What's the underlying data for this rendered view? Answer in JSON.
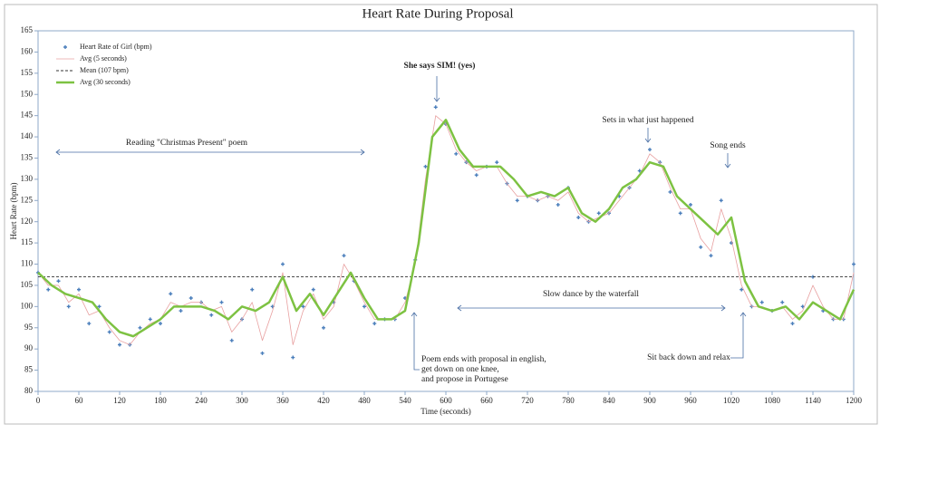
{
  "chart_data": {
    "type": "line",
    "title": "Heart Rate During Proposal",
    "x_label": "Time (seconds)",
    "y_label": "Heart Rate (bpm)",
    "xlim": [
      0,
      1200
    ],
    "xticks": [
      0,
      60,
      120,
      180,
      240,
      300,
      360,
      420,
      480,
      540,
      600,
      660,
      720,
      780,
      840,
      900,
      960,
      1020,
      1080,
      1140,
      1200
    ],
    "ylim": [
      80,
      165
    ],
    "yticks": [
      80,
      85,
      90,
      95,
      100,
      105,
      110,
      115,
      120,
      125,
      130,
      135,
      140,
      145,
      150,
      155,
      160,
      165
    ],
    "legend": "top-left",
    "series": [
      {
        "name": "Heart Rate of Girl (bpm)",
        "style": "markers",
        "color": "#4a7ebb",
        "x": [
          0,
          15,
          30,
          45,
          60,
          75,
          90,
          105,
          120,
          135,
          150,
          165,
          180,
          195,
          210,
          225,
          240,
          255,
          270,
          285,
          300,
          315,
          330,
          345,
          360,
          375,
          390,
          405,
          420,
          435,
          450,
          465,
          480,
          495,
          510,
          525,
          540,
          555,
          570,
          585,
          600,
          615,
          630,
          645,
          660,
          675,
          690,
          705,
          720,
          735,
          750,
          765,
          780,
          795,
          810,
          825,
          840,
          855,
          870,
          885,
          900,
          915,
          930,
          945,
          960,
          975,
          990,
          1005,
          1020,
          1035,
          1050,
          1065,
          1080,
          1095,
          1110,
          1125,
          1140,
          1155,
          1170,
          1185,
          1200
        ],
        "values": [
          108,
          104,
          106,
          100,
          104,
          96,
          100,
          94,
          91,
          91,
          95,
          97,
          96,
          103,
          99,
          102,
          101,
          98,
          101,
          92,
          97,
          104,
          89,
          100,
          110,
          88,
          100,
          104,
          95,
          101,
          112,
          106,
          100,
          96,
          97,
          97,
          102,
          111,
          133,
          147,
          143,
          136,
          134,
          131,
          133,
          134,
          129,
          125,
          126,
          125,
          126,
          124,
          128,
          121,
          120,
          122,
          122,
          126,
          128,
          132,
          137,
          134,
          127,
          122,
          124,
          114,
          112,
          125,
          115,
          104,
          100,
          101,
          99,
          101,
          96,
          100,
          107,
          99,
          97,
          97,
          110
        ]
      },
      {
        "name": "Avg (5 seconds)",
        "style": "line",
        "color": "#e8a0a0",
        "x": [
          0,
          15,
          30,
          45,
          60,
          75,
          90,
          105,
          120,
          135,
          150,
          165,
          180,
          195,
          210,
          225,
          240,
          255,
          270,
          285,
          300,
          315,
          330,
          345,
          360,
          375,
          390,
          405,
          420,
          435,
          450,
          465,
          480,
          495,
          510,
          525,
          540,
          555,
          570,
          585,
          600,
          615,
          630,
          645,
          660,
          675,
          690,
          705,
          720,
          735,
          750,
          765,
          780,
          795,
          810,
          825,
          840,
          855,
          870,
          885,
          900,
          915,
          930,
          945,
          960,
          975,
          990,
          1005,
          1020,
          1035,
          1050,
          1065,
          1080,
          1095,
          1110,
          1125,
          1140,
          1155,
          1170,
          1185,
          1200
        ],
        "values": [
          108,
          105,
          105,
          101,
          103,
          98,
          99,
          95,
          92,
          91,
          94,
          96,
          97,
          101,
          100,
          101,
          101,
          99,
          100,
          94,
          97,
          101,
          92,
          99,
          108,
          91,
          99,
          103,
          97,
          100,
          110,
          106,
          101,
          97,
          97,
          97,
          101,
          110,
          130,
          145,
          143,
          137,
          134,
          132,
          133,
          133,
          129,
          126,
          126,
          125,
          126,
          125,
          127,
          122,
          120,
          121,
          122,
          125,
          128,
          131,
          136,
          134,
          128,
          123,
          123,
          116,
          113,
          123,
          116,
          105,
          100,
          100,
          99,
          100,
          97,
          99,
          105,
          100,
          97,
          97,
          108
        ]
      },
      {
        "name": "Mean (107 bpm)",
        "style": "dashed",
        "color": "#333333",
        "value": 107
      },
      {
        "name": "Avg (30 seconds)",
        "style": "thick",
        "color": "#7dc242",
        "x": [
          0,
          20,
          40,
          60,
          80,
          100,
          120,
          140,
          160,
          180,
          200,
          220,
          240,
          260,
          280,
          300,
          320,
          340,
          360,
          380,
          400,
          420,
          440,
          460,
          480,
          500,
          520,
          540,
          560,
          580,
          600,
          620,
          640,
          660,
          680,
          700,
          720,
          740,
          760,
          780,
          800,
          820,
          840,
          860,
          880,
          900,
          920,
          940,
          960,
          980,
          1000,
          1020,
          1040,
          1060,
          1080,
          1100,
          1120,
          1140,
          1160,
          1180,
          1200
        ],
        "values": [
          108,
          105,
          103,
          102,
          101,
          97,
          94,
          93,
          95,
          97,
          100,
          100,
          100,
          99,
          97,
          100,
          99,
          101,
          107,
          99,
          103,
          98,
          103,
          108,
          102,
          97,
          97,
          99,
          115,
          140,
          144,
          137,
          133,
          133,
          133,
          130,
          126,
          127,
          126,
          128,
          122,
          120,
          123,
          128,
          130,
          134,
          133,
          126,
          123,
          120,
          117,
          121,
          106,
          100,
          99,
          100,
          97,
          101,
          99,
          97,
          104
        ]
      }
    ],
    "annotations": [
      "Reading \"Christmas Present\" poem",
      "She says SIM! (yes)",
      "Sets in what just happened",
      "Song ends",
      "Slow dance by the waterfall",
      "Poem ends with proposal in english,",
      "get down on one knee,",
      "and propose in Portugese",
      "Sit back down and relax"
    ]
  }
}
